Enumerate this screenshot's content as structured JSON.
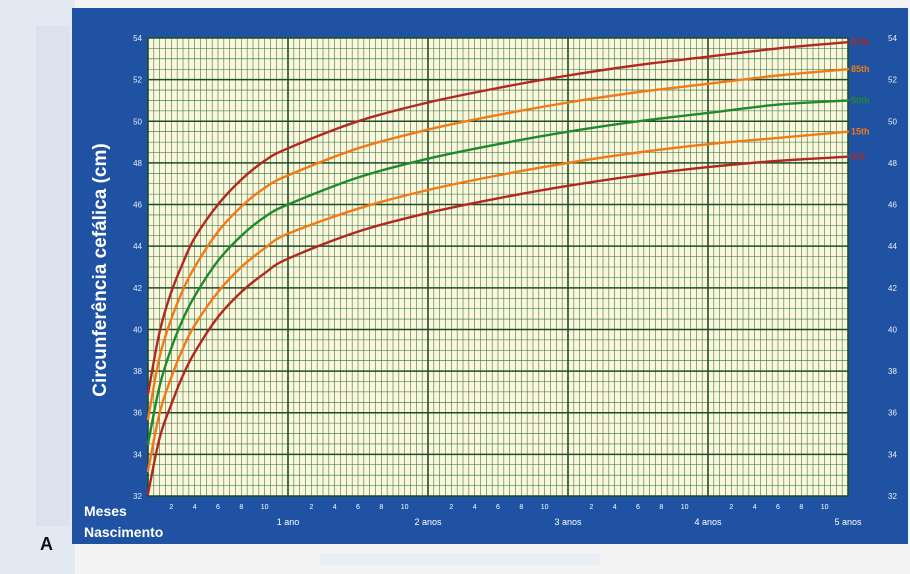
{
  "figure_label": "A",
  "chart_data": {
    "type": "line",
    "ylabel": "Circunferência cefálica (cm)",
    "xlabel_lines": [
      "Meses",
      "Nascimento"
    ],
    "ylim": [
      32,
      54
    ],
    "y_ticks": [
      32,
      34,
      36,
      38,
      40,
      42,
      44,
      46,
      48,
      50,
      52,
      54
    ],
    "xlim_months": [
      0,
      60
    ],
    "month_ticks": [
      "2",
      "4",
      "6",
      "8",
      "10"
    ],
    "year_labels": [
      "1 ano",
      "2 anos",
      "3 anos",
      "4 anos",
      "5 anos"
    ],
    "grid": true,
    "series": [
      {
        "name": "97th",
        "color": "#b0281e",
        "x": [
          0,
          1,
          2,
          3,
          4,
          6,
          8,
          10,
          12,
          18,
          24,
          30,
          36,
          42,
          48,
          54,
          60
        ],
        "y": [
          36.9,
          39.9,
          41.8,
          43.2,
          44.4,
          46.0,
          47.2,
          48.1,
          48.7,
          50.0,
          50.9,
          51.6,
          52.2,
          52.7,
          53.1,
          53.5,
          53.8
        ]
      },
      {
        "name": "85th",
        "color": "#f07a16",
        "x": [
          0,
          1,
          2,
          3,
          4,
          6,
          8,
          10,
          12,
          18,
          24,
          30,
          36,
          42,
          48,
          54,
          60
        ],
        "y": [
          35.7,
          38.7,
          40.5,
          41.9,
          43.0,
          44.7,
          45.9,
          46.8,
          47.4,
          48.7,
          49.6,
          50.3,
          50.9,
          51.4,
          51.8,
          52.2,
          52.5
        ]
      },
      {
        "name": "50th",
        "color": "#1f8a2a",
        "x": [
          0,
          1,
          2,
          3,
          4,
          6,
          8,
          10,
          12,
          18,
          24,
          30,
          36,
          42,
          48,
          54,
          60
        ],
        "y": [
          34.5,
          37.3,
          39.1,
          40.5,
          41.6,
          43.3,
          44.5,
          45.4,
          46.0,
          47.3,
          48.2,
          48.9,
          49.5,
          50.0,
          50.4,
          50.8,
          51.0
        ]
      },
      {
        "name": "15th",
        "color": "#f07a16",
        "x": [
          0,
          1,
          2,
          3,
          4,
          6,
          8,
          10,
          12,
          18,
          24,
          30,
          36,
          42,
          48,
          54,
          60
        ],
        "y": [
          33.2,
          36.0,
          37.7,
          39.1,
          40.2,
          41.8,
          43.0,
          43.9,
          44.6,
          45.8,
          46.7,
          47.4,
          48.0,
          48.5,
          48.9,
          49.2,
          49.5
        ]
      },
      {
        "name": "3rd",
        "color": "#b0281e",
        "x": [
          0,
          1,
          2,
          3,
          4,
          6,
          8,
          10,
          12,
          18,
          24,
          30,
          36,
          42,
          48,
          54,
          60
        ],
        "y": [
          32.1,
          34.8,
          36.4,
          37.8,
          38.9,
          40.6,
          41.8,
          42.7,
          43.4,
          44.7,
          45.6,
          46.3,
          46.9,
          47.4,
          47.8,
          48.1,
          48.3
        ]
      }
    ]
  }
}
